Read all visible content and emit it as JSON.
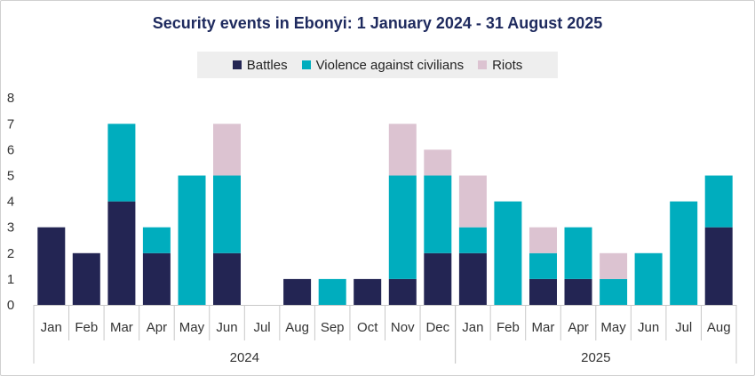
{
  "chart_data": {
    "type": "bar",
    "stacked": true,
    "title": "Security events in Ebonyi: 1 January 2024 - 31 August 2025",
    "categories": [
      "Jan",
      "Feb",
      "Mar",
      "Apr",
      "May",
      "Jun",
      "Jul",
      "Aug",
      "Sep",
      "Oct",
      "Nov",
      "Dec",
      "Jan",
      "Feb",
      "Mar",
      "Apr",
      "May",
      "Jun",
      "Jul",
      "Aug"
    ],
    "groups": [
      {
        "label": "2024",
        "start": 0,
        "end": 11
      },
      {
        "label": "2025",
        "start": 12,
        "end": 19
      }
    ],
    "series": [
      {
        "name": "Battles",
        "color": "#232553",
        "values": [
          3,
          2,
          4,
          2,
          0,
          2,
          0,
          1,
          0,
          1,
          1,
          2,
          2,
          0,
          1,
          1,
          0,
          0,
          0,
          3
        ]
      },
      {
        "name": "Violence against civilians",
        "color": "#00adbe",
        "values": [
          0,
          0,
          3,
          1,
          5,
          3,
          0,
          0,
          1,
          0,
          4,
          3,
          1,
          4,
          1,
          2,
          1,
          2,
          4,
          2
        ]
      },
      {
        "name": "Riots",
        "color": "#dcc3d1",
        "values": [
          0,
          0,
          0,
          0,
          0,
          2,
          0,
          0,
          0,
          0,
          2,
          1,
          2,
          0,
          1,
          0,
          1,
          0,
          0,
          0
        ]
      }
    ],
    "ylim": [
      0,
      8
    ],
    "yticks": [
      "0",
      "1",
      "2",
      "3",
      "4",
      "5",
      "6",
      "7",
      "8"
    ],
    "xlabel": "",
    "ylabel": ""
  }
}
